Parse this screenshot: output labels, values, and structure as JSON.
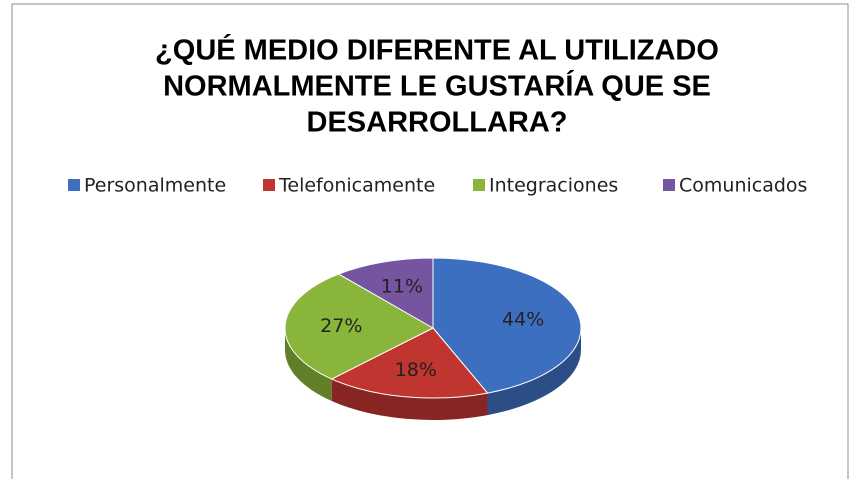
{
  "chart_data": {
    "type": "pie",
    "title": [
      "¿QUÉ MEDIO DIFERENTE AL UTILIZADO",
      "NORMALMENTE LE GUSTARÍA QUE SE",
      "DESARROLLARA?"
    ],
    "categories": [
      "Personalmente",
      "Telefonicamente",
      "Integraciones",
      "Comunicados"
    ],
    "values": [
      44,
      18,
      27,
      11
    ],
    "value_labels": [
      "44%",
      "18%",
      "27%",
      "11%"
    ],
    "colors": [
      "#3d6fc0",
      "#c0352f",
      "#8ab53b",
      "#7655a0"
    ],
    "legend": "top"
  }
}
